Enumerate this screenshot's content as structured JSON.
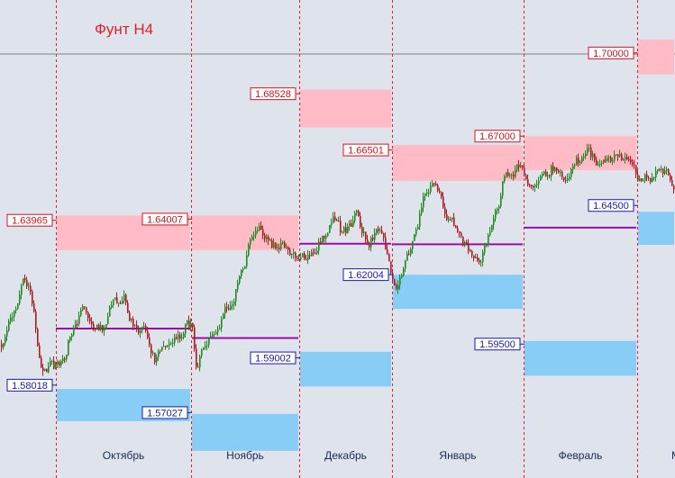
{
  "chart_data": {
    "type": "candlestick",
    "title": "Фунт H4",
    "colors": {
      "background": "#dfe4ec",
      "bull": "#1f8a1f",
      "bear": "#b0191e",
      "resistance_zone": "#ffbcc6",
      "support_zone": "#88cdf6",
      "pivot_line": "#9c0ca8",
      "separator": "#e0202c",
      "resistance_label": "#d8121c",
      "support_label": "#1a1ab0",
      "title": "#e0202c",
      "hline": "#808080"
    },
    "ylim": [
      1.5467,
      1.7191
    ],
    "months": [
      "Октябрь",
      "Ноябрь",
      "Декабрь",
      "Январь",
      "Февраль",
      "М"
    ],
    "month_bounds": [
      -0.44,
      0.0,
      1.0,
      2.0,
      3.0,
      4.0,
      5.0,
      5.15
    ],
    "resistance_levels": [
      {
        "value": 1.63965,
        "label": "1.63965",
        "zone": [
          1.6289,
          1.6414
        ],
        "period": 0
      },
      {
        "value": 1.64007,
        "label": "1.64007",
        "zone": [
          1.6289,
          1.6414
        ],
        "period": 1
      },
      {
        "value": 1.68528,
        "label": "1.68528",
        "zone": [
          1.6731,
          1.6868
        ],
        "period": 2
      },
      {
        "value": 1.66501,
        "label": "1.66501",
        "zone": [
          1.6539,
          1.6668
        ],
        "period": 3
      },
      {
        "value": 1.67,
        "label": "1.67000",
        "zone": [
          1.6577,
          1.67
        ],
        "period": 4
      },
      {
        "value": 1.7,
        "label": "1.70000",
        "zone": [
          1.6923,
          1.7048
        ],
        "period": 5
      }
    ],
    "support_levels": [
      {
        "value": 1.58018,
        "label": "1.58018",
        "zone": [
          1.5672,
          1.5788
        ],
        "period": 0
      },
      {
        "value": 1.57027,
        "label": "1.57027",
        "zone": [
          1.5565,
          1.5698
        ],
        "period": 1
      },
      {
        "value": 1.59002,
        "label": "1.59002",
        "zone": [
          1.5797,
          1.5922
        ],
        "period": 2
      },
      {
        "value": 1.62004,
        "label": "1.62004",
        "zone": [
          1.6077,
          1.62
        ],
        "period": 3
      },
      {
        "value": 1.595,
        "label": "1.59500",
        "zone": [
          1.5836,
          1.5961
        ],
        "period": 4
      },
      {
        "value": 1.645,
        "label": "1.64500",
        "zone": [
          1.6308,
          1.6427
        ],
        "period": 5
      }
    ],
    "pivot_levels": [
      {
        "value": 1.6006,
        "period": 0
      },
      {
        "value": 1.5972,
        "period": 1
      },
      {
        "value": 1.6312,
        "period": 2
      },
      {
        "value": 1.631,
        "period": 3
      },
      {
        "value": 1.637,
        "period": 4
      }
    ],
    "price_path": [
      [
        -0.44,
        1.595
      ],
      [
        -0.36,
        1.603
      ],
      [
        -0.3,
        1.61
      ],
      [
        -0.25,
        1.617
      ],
      [
        -0.2,
        1.613
      ],
      [
        -0.16,
        1.601
      ],
      [
        -0.12,
        1.586
      ],
      [
        -0.06,
        1.588
      ],
      [
        0.0,
        1.586
      ],
      [
        0.06,
        1.59
      ],
      [
        0.12,
        1.602
      ],
      [
        0.2,
        1.606
      ],
      [
        0.28,
        1.604
      ],
      [
        0.35,
        1.602
      ],
      [
        0.42,
        1.611
      ],
      [
        0.5,
        1.611
      ],
      [
        0.58,
        1.601
      ],
      [
        0.66,
        1.598
      ],
      [
        0.73,
        1.589
      ],
      [
        0.8,
        1.592
      ],
      [
        0.88,
        1.595
      ],
      [
        0.95,
        1.601
      ],
      [
        1.0,
        1.601
      ],
      [
        1.05,
        1.584
      ],
      [
        1.1,
        1.592
      ],
      [
        1.18,
        1.6
      ],
      [
        1.25,
        1.601
      ],
      [
        1.32,
        1.607
      ],
      [
        1.4,
        1.613
      ],
      [
        1.48,
        1.624
      ],
      [
        1.55,
        1.632
      ],
      [
        1.62,
        1.636
      ],
      [
        1.7,
        1.633
      ],
      [
        1.78,
        1.63
      ],
      [
        1.83,
        1.632
      ],
      [
        1.9,
        1.629
      ],
      [
        2.0,
        1.622
      ],
      [
        2.08,
        1.627
      ],
      [
        2.16,
        1.63
      ],
      [
        2.25,
        1.634
      ],
      [
        2.33,
        1.639
      ],
      [
        2.4,
        1.642
      ],
      [
        2.45,
        1.635
      ],
      [
        2.55,
        1.637
      ],
      [
        2.6,
        1.64
      ],
      [
        2.68,
        1.636
      ],
      [
        2.75,
        1.633
      ],
      [
        2.82,
        1.636
      ],
      [
        2.88,
        1.633
      ],
      [
        2.95,
        1.624
      ],
      [
        3.02,
        1.616
      ],
      [
        3.1,
        1.624
      ],
      [
        3.18,
        1.635
      ],
      [
        3.24,
        1.647
      ],
      [
        3.3,
        1.652
      ],
      [
        3.36,
        1.648
      ],
      [
        3.42,
        1.64
      ],
      [
        3.48,
        1.636
      ],
      [
        3.55,
        1.63
      ],
      [
        3.62,
        1.622
      ],
      [
        3.7,
        1.628
      ],
      [
        3.78,
        1.64
      ],
      [
        3.84,
        1.653
      ],
      [
        3.9,
        1.658
      ],
      [
        3.96,
        1.659
      ],
      [
        4.02,
        1.654
      ],
      [
        4.08,
        1.651
      ],
      [
        4.16,
        1.654
      ],
      [
        4.24,
        1.659
      ],
      [
        4.32,
        1.656
      ],
      [
        4.4,
        1.658
      ],
      [
        4.48,
        1.661
      ],
      [
        4.56,
        1.664
      ],
      [
        4.64,
        1.661
      ],
      [
        4.72,
        1.662
      ],
      [
        4.8,
        1.664
      ],
      [
        4.88,
        1.663
      ],
      [
        4.95,
        1.656
      ],
      [
        5.02,
        1.654
      ],
      [
        5.1,
        1.656
      ],
      [
        5.15,
        1.654
      ]
    ],
    "gridlines": [
      1.6996
    ]
  }
}
